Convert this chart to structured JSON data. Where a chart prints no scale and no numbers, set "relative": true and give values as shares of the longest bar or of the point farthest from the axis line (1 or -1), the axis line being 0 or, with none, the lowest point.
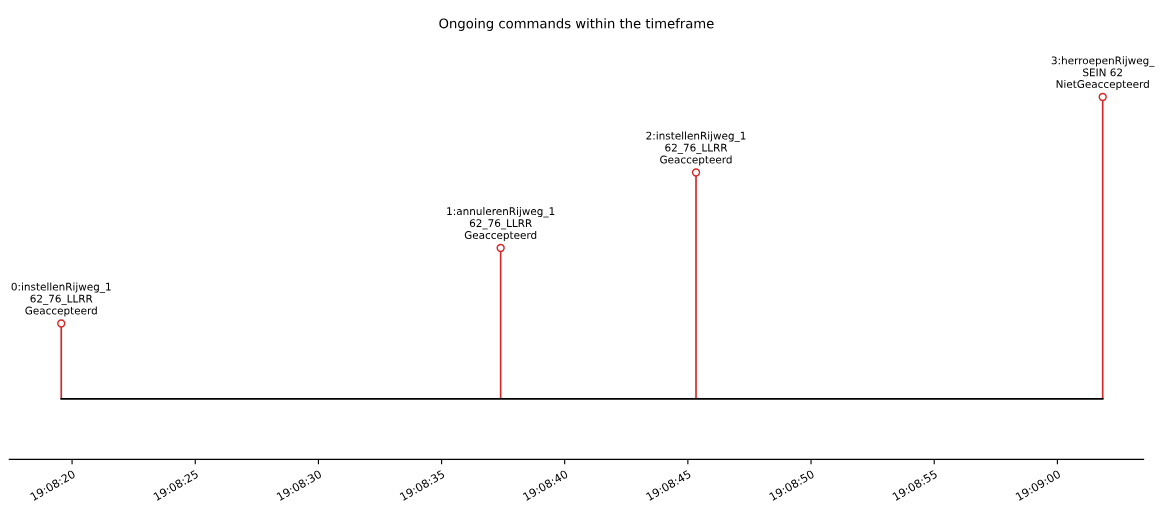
{
  "chart_data": {
    "type": "lollipop",
    "title": "Ongoing commands within the timeframe",
    "relative": true,
    "x": [
      19.138767,
      19.143722,
      19.145925,
      19.150511
    ],
    "series": [
      {
        "color": "#d62728",
        "values": [
          0.25,
          0.5,
          0.75,
          1
        ]
      }
    ],
    "marker": "circle",
    "xlim": [
      19.138181,
      19.150972
    ],
    "xticks": [
      {
        "value": 19.138889,
        "label": "19:08:20"
      },
      {
        "value": 19.140278,
        "label": "19:08:25"
      },
      {
        "value": 19.141667,
        "label": "19:08:30"
      },
      {
        "value": 19.143056,
        "label": "19:08:35"
      },
      {
        "value": 19.144444,
        "label": "19:08:40"
      },
      {
        "value": 19.145833,
        "label": "19:08:45"
      },
      {
        "value": 19.147222,
        "label": "19:08:50"
      },
      {
        "value": 19.148611,
        "label": "19:08:55"
      },
      {
        "value": 19.15,
        "label": "19:09:00"
      }
    ],
    "tick_labels": "x",
    "grid": false,
    "annotations": [
      {
        "text": "0:instellenRijweg_1\n62_76_LLRR\nGeaccepteerd",
        "x": 19.138767,
        "y": 0.25
      },
      {
        "text": "1:annulerenRijweg_1\n62_76_LLRR\nGeaccepteerd",
        "x": 19.143722,
        "y": 0.5
      },
      {
        "text": "2:instellenRijweg_1\n62_76_LLRR\nGeaccepteerd",
        "x": 19.145925,
        "y": 0.75
      },
      {
        "text": "3:herroepenRijweg_\nSEIN 62\nNietGeaccepteerd",
        "x": 19.150511,
        "y": 1
      }
    ]
  }
}
